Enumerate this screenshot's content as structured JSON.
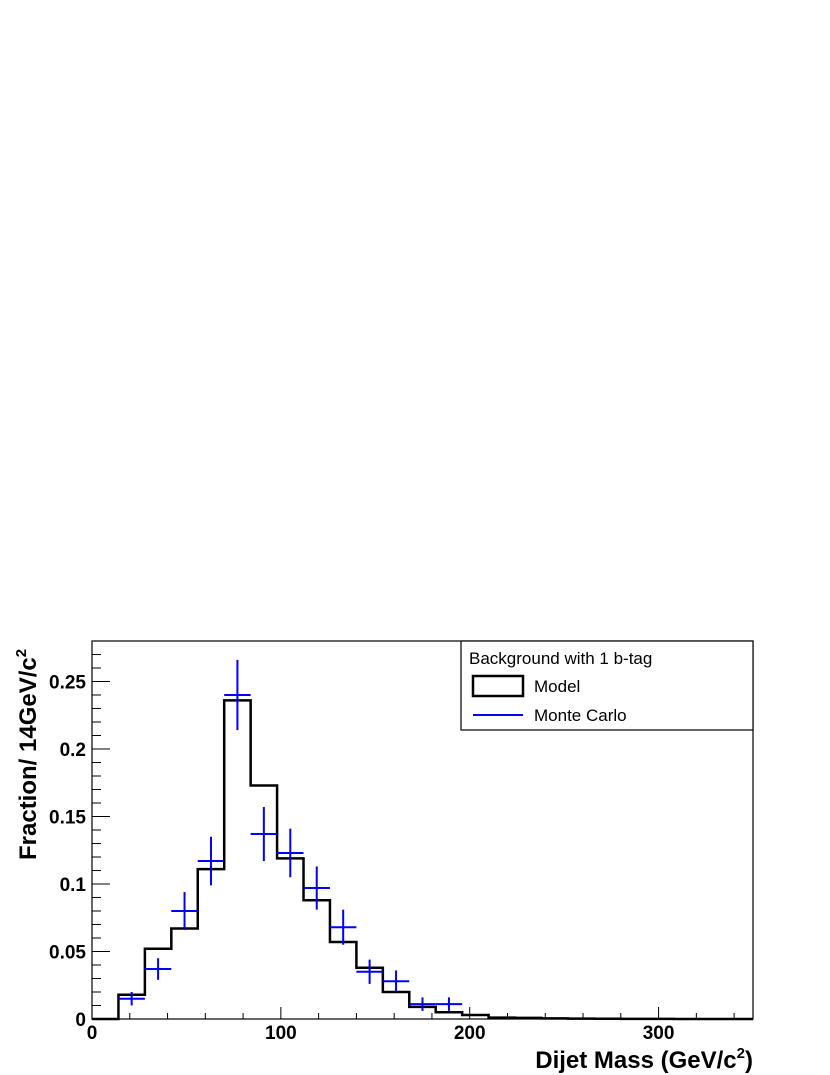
{
  "chart_data": {
    "type": "histogram",
    "xlabel": "Dijet Mass (GeV/c",
    "xlabel_sup": "2",
    "xlabel_close": ")",
    "ylabel": "Fraction/ 14GeV/c",
    "ylabel_sup": "2",
    "xlim": [
      0,
      350
    ],
    "ylim": [
      0,
      0.28
    ],
    "x_ticks": [
      0,
      100,
      200,
      300
    ],
    "x_tick_labels": [
      "0",
      "100",
      "200",
      "300"
    ],
    "y_ticks": [
      0,
      0.05,
      0.1,
      0.15,
      0.2,
      0.25
    ],
    "y_tick_labels": [
      "0",
      "0.05",
      "0.1",
      "0.15",
      "0.2",
      "0.25"
    ],
    "legend": {
      "title": "Background with 1 b-tag",
      "position": "top-right",
      "entries": [
        "Model",
        "Monte Carlo"
      ]
    },
    "bin_width": 14,
    "series": [
      {
        "name": "Model",
        "style": "step",
        "color": "#000000",
        "bin_edges": [
          0,
          14,
          28,
          42,
          56,
          70,
          84,
          98,
          112,
          126,
          140,
          154,
          168,
          182,
          196,
          210,
          224,
          238,
          252,
          266,
          280,
          294,
          308,
          322,
          336,
          350
        ],
        "values": [
          0.0,
          0.018,
          0.052,
          0.067,
          0.111,
          0.236,
          0.173,
          0.119,
          0.088,
          0.057,
          0.038,
          0.02,
          0.009,
          0.005,
          0.003,
          0.001,
          0.0008,
          0.0005,
          0.0003,
          0.0002,
          0.0001,
          0.0001,
          0.0,
          0.0,
          0.0
        ]
      },
      {
        "name": "Monte Carlo",
        "style": "errorbar",
        "color": "#0000ff",
        "x": [
          21,
          35,
          49,
          63,
          77,
          91,
          105,
          119,
          133,
          147,
          161,
          175,
          189
        ],
        "values": [
          0.015,
          0.037,
          0.08,
          0.117,
          0.24,
          0.137,
          0.123,
          0.097,
          0.068,
          0.035,
          0.028,
          0.011,
          0.011
        ],
        "errors": [
          0.005,
          0.008,
          0.014,
          0.018,
          0.026,
          0.02,
          0.018,
          0.016,
          0.013,
          0.009,
          0.008,
          0.005,
          0.005
        ]
      }
    ]
  }
}
